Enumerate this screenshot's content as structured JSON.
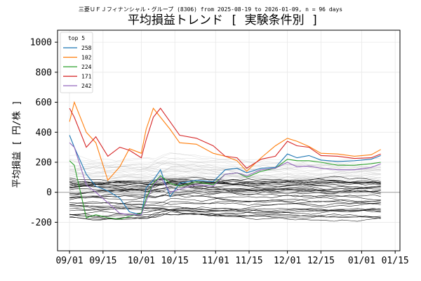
{
  "chart_data": {
    "type": "line",
    "suptitle": "三菱ＵＦＪフィナンシャル・グループ (8306) from 2025-08-19 to 2026-01-09, n = 96 days",
    "title": "平均損益トレンド [ 実験条件別 ]",
    "xlabel": "",
    "ylabel": "平均損益 [ 円/株 ]",
    "xlim": [
      "2025-08-27",
      "2026-01-17"
    ],
    "ylim": [
      -390,
      1080
    ],
    "x_ticks": [
      "2025-09-01",
      "2025-09-15",
      "2025-10-01",
      "2025-10-15",
      "2025-11-01",
      "2025-11-15",
      "2025-12-01",
      "2025-12-15",
      "2026-01-01",
      "2026-01-15"
    ],
    "x_tick_labels": [
      "09/01",
      "09/15",
      "10/01",
      "10/15",
      "11/01",
      "11/15",
      "12/01",
      "12/15",
      "01/01",
      "01/15"
    ],
    "y_ticks": [
      -200,
      0,
      200,
      400,
      600,
      800,
      1000
    ],
    "y_tick_labels": [
      "-200",
      "0",
      "200",
      "400",
      "600",
      "800",
      "1000"
    ],
    "zero_line": 0,
    "grid": true,
    "legend": {
      "title": "top 5",
      "placement": "top-left"
    },
    "series": [
      {
        "name": "258",
        "color": "#1f77b4",
        "x": [
          "2025-09-01",
          "2025-09-03",
          "2025-09-08",
          "2025-09-12",
          "2025-09-17",
          "2025-09-22",
          "2025-09-26",
          "2025-10-01",
          "2025-10-03",
          "2025-10-06",
          "2025-10-09",
          "2025-10-13",
          "2025-10-17",
          "2025-10-24",
          "2025-10-31",
          "2025-11-05",
          "2025-11-10",
          "2025-11-14",
          "2025-11-20",
          "2025-11-26",
          "2025-12-01",
          "2025-12-05",
          "2025-12-10",
          "2025-12-15",
          "2025-12-22",
          "2025-12-29",
          "2026-01-05",
          "2026-01-09"
        ],
        "values": [
          380,
          300,
          120,
          40,
          10,
          -40,
          -130,
          -150,
          30,
          80,
          150,
          -30,
          60,
          80,
          70,
          150,
          160,
          130,
          160,
          165,
          255,
          230,
          245,
          215,
          205,
          210,
          220,
          245
        ]
      },
      {
        "name": "102",
        "color": "#ff7f0e",
        "x": [
          "2025-09-01",
          "2025-09-03",
          "2025-09-08",
          "2025-09-12",
          "2025-09-17",
          "2025-09-22",
          "2025-09-26",
          "2025-10-01",
          "2025-10-03",
          "2025-10-06",
          "2025-10-09",
          "2025-10-13",
          "2025-10-17",
          "2025-10-24",
          "2025-10-31",
          "2025-11-05",
          "2025-11-10",
          "2025-11-14",
          "2025-11-20",
          "2025-11-26",
          "2025-12-01",
          "2025-12-05",
          "2025-12-10",
          "2025-12-15",
          "2025-12-22",
          "2025-12-29",
          "2026-01-05",
          "2026-01-09"
        ],
        "values": [
          470,
          600,
          400,
          330,
          80,
          170,
          290,
          260,
          420,
          560,
          500,
          420,
          330,
          320,
          260,
          240,
          210,
          140,
          230,
          310,
          360,
          340,
          305,
          260,
          255,
          240,
          250,
          285
        ]
      },
      {
        "name": "224",
        "color": "#2ca02c",
        "x": [
          "2025-09-01",
          "2025-09-03",
          "2025-09-08",
          "2025-09-12",
          "2025-09-17",
          "2025-09-22",
          "2025-09-26",
          "2025-10-01",
          "2025-10-03",
          "2025-10-06",
          "2025-10-09",
          "2025-10-13",
          "2025-10-17",
          "2025-10-24",
          "2025-10-31",
          "2025-11-05",
          "2025-11-10",
          "2025-11-14",
          "2025-11-20",
          "2025-11-26",
          "2025-12-01",
          "2025-12-05",
          "2025-12-10",
          "2025-12-15",
          "2025-12-22",
          "2025-12-29",
          "2026-01-05",
          "2026-01-09"
        ],
        "values": [
          210,
          180,
          -170,
          -150,
          -170,
          -180,
          -160,
          -140,
          -40,
          60,
          110,
          60,
          40,
          70,
          50,
          120,
          130,
          100,
          140,
          160,
          220,
          210,
          210,
          200,
          180,
          180,
          190,
          200
        ]
      },
      {
        "name": "171",
        "color": "#d62728",
        "x": [
          "2025-09-01",
          "2025-09-03",
          "2025-09-08",
          "2025-09-12",
          "2025-09-17",
          "2025-09-22",
          "2025-09-26",
          "2025-10-01",
          "2025-10-03",
          "2025-10-06",
          "2025-10-09",
          "2025-10-13",
          "2025-10-17",
          "2025-10-24",
          "2025-10-31",
          "2025-11-05",
          "2025-11-10",
          "2025-11-14",
          "2025-11-20",
          "2025-11-26",
          "2025-12-01",
          "2025-12-05",
          "2025-12-10",
          "2025-12-15",
          "2025-12-22",
          "2025-12-29",
          "2026-01-05",
          "2026-01-09"
        ],
        "values": [
          560,
          500,
          300,
          370,
          240,
          300,
          280,
          230,
          350,
          500,
          560,
          470,
          380,
          360,
          310,
          240,
          230,
          160,
          220,
          240,
          340,
          310,
          300,
          245,
          240,
          225,
          230,
          255
        ]
      },
      {
        "name": "242",
        "color": "#9467bd",
        "x": [
          "2025-09-01",
          "2025-09-03",
          "2025-09-08",
          "2025-09-12",
          "2025-09-17",
          "2025-09-22",
          "2025-09-26",
          "2025-10-01",
          "2025-10-03",
          "2025-10-06",
          "2025-10-09",
          "2025-10-13",
          "2025-10-17",
          "2025-10-24",
          "2025-10-31",
          "2025-11-05",
          "2025-11-10",
          "2025-11-14",
          "2025-11-20",
          "2025-11-26",
          "2025-12-01",
          "2025-12-05",
          "2025-12-10",
          "2025-12-15",
          "2025-12-22",
          "2025-12-29",
          "2026-01-05",
          "2026-01-09"
        ],
        "values": [
          330,
          300,
          50,
          0,
          -70,
          -140,
          -150,
          -150,
          -60,
          50,
          100,
          0,
          20,
          50,
          40,
          120,
          130,
          110,
          150,
          160,
          200,
          170,
          175,
          160,
          150,
          150,
          165,
          190
        ]
      }
    ],
    "background_series_note": "Approximately 90 additional unlabeled condition series drawn in black and light gray"
  }
}
